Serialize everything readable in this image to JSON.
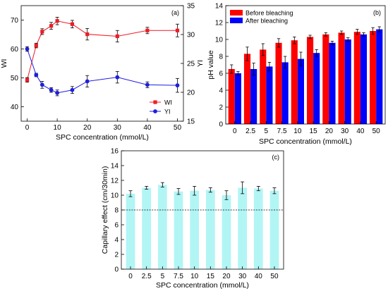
{
  "chart_data": [
    {
      "type": "line",
      "panel_label": "(a)",
      "xlabel": "SPC concentration (mmol/L)",
      "ylabel_left": "WI",
      "ylabel_right": "YI",
      "x": [
        0,
        3,
        5,
        8,
        10,
        15,
        20,
        30,
        40,
        50
      ],
      "x_ticks": [
        0,
        10,
        20,
        30,
        40,
        50
      ],
      "x_tick_labels": [
        "0",
        "10",
        "20",
        "30",
        "40",
        "50"
      ],
      "xlim": [
        -2,
        52
      ],
      "ylim_left": [
        35,
        75
      ],
      "y_ticks_left": [
        40,
        50,
        60,
        70
      ],
      "y_tick_labels_left": [
        "40",
        "50",
        "60",
        "70"
      ],
      "ylim_right": [
        15,
        35
      ],
      "y_ticks_right": [
        15,
        20,
        25,
        30,
        35
      ],
      "y_tick_labels_right": [
        "15",
        "20",
        "25",
        "30",
        "35"
      ],
      "legend_position": "bottom-right",
      "series": [
        {
          "name": "WI",
          "axis": "left",
          "color": "#ee1c25",
          "marker": "square",
          "values": [
            49.3,
            61.2,
            66.0,
            68.0,
            69.7,
            68.6,
            65.1,
            64.4,
            66.4,
            66.4
          ],
          "errors": [
            0.8,
            0.8,
            1.0,
            1.2,
            1.3,
            1.3,
            2.0,
            2.0,
            1.1,
            2.2
          ]
        },
        {
          "name": "YI",
          "axis": "right",
          "color": "#1e1ee1",
          "marker": "circle",
          "values": [
            27.5,
            23.0,
            21.3,
            20.4,
            19.9,
            20.4,
            21.9,
            22.6,
            21.3,
            21.2
          ],
          "errors": [
            0.4,
            0.3,
            0.6,
            0.4,
            0.5,
            0.6,
            1.0,
            1.0,
            0.5,
            1.2
          ]
        }
      ]
    },
    {
      "type": "bar",
      "panel_label": "(b)",
      "xlabel": "SPC concentration (mmol/L)",
      "ylabel": "pH value",
      "categories": [
        "0",
        "2.5",
        "5",
        "7.5",
        "10",
        "15",
        "20",
        "30",
        "40",
        "50"
      ],
      "ylim": [
        0,
        14
      ],
      "y_ticks": [
        0,
        2,
        4,
        6,
        8,
        10,
        12,
        14
      ],
      "y_tick_labels": [
        "0",
        "2",
        "4",
        "6",
        "8",
        "10",
        "12",
        "14"
      ],
      "legend_position": "top-left",
      "series": [
        {
          "name": "Before bleaching",
          "color": "#ff0000",
          "values": [
            6.5,
            8.3,
            8.8,
            9.6,
            9.9,
            10.3,
            10.6,
            10.8,
            10.9,
            11.0
          ],
          "errors": [
            0.5,
            0.8,
            0.7,
            0.5,
            0.4,
            0.2,
            0.2,
            0.2,
            0.3,
            0.4
          ]
        },
        {
          "name": "After bleaching",
          "color": "#0000ff",
          "values": [
            6.0,
            6.5,
            6.8,
            7.3,
            7.7,
            8.4,
            9.6,
            10.0,
            10.6,
            11.2
          ],
          "errors": [
            0.2,
            0.7,
            0.5,
            0.7,
            0.8,
            0.4,
            0.2,
            0.2,
            0.2,
            0.3
          ]
        }
      ]
    },
    {
      "type": "bar",
      "panel_label": "(c)",
      "xlabel": "SPC concentration (mmol/L)",
      "ylabel": "Capillary effect (cm/30min)",
      "categories": [
        "0",
        "2.5",
        "5",
        "7.5",
        "10",
        "15",
        "20",
        "30",
        "40",
        "50"
      ],
      "ylim": [
        0,
        16
      ],
      "y_ticks": [
        0,
        2,
        4,
        6,
        8,
        10,
        12,
        14,
        16
      ],
      "y_tick_labels": [
        "0",
        "2",
        "4",
        "6",
        "8",
        "10",
        "12",
        "14",
        "16"
      ],
      "reference_line": 8,
      "series": [
        {
          "color": "#b2f5f5",
          "values": [
            10.2,
            11.0,
            11.4,
            10.5,
            10.6,
            10.7,
            10.0,
            11.0,
            10.9,
            10.6
          ],
          "errors": [
            0.4,
            0.2,
            0.3,
            0.4,
            0.6,
            0.3,
            0.6,
            0.8,
            0.3,
            0.4
          ]
        }
      ]
    }
  ]
}
